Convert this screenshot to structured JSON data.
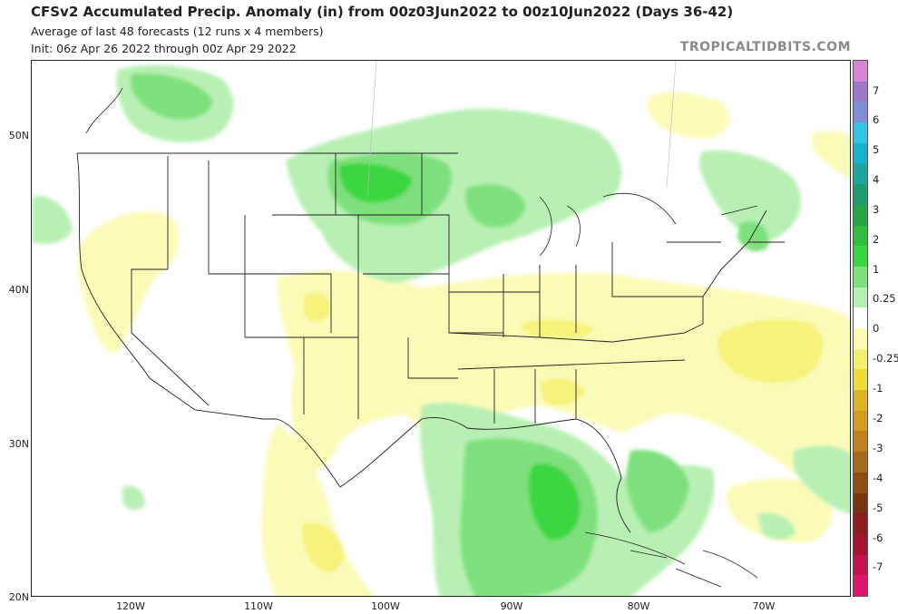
{
  "header": {
    "title": "CFSv2 Accumulated Precip. Anomaly (in) from 00z03Jun2022 to 00z10Jun2022 (Days 36-42)",
    "subtitle": "Average of last 48 forecasts (12 runs x 4 members)",
    "init": "Init: 06z Apr 26 2022 through 00z Apr 29 2022",
    "credit": "TROPICALTIDBITS.COM"
  },
  "axes": {
    "lat_labels": [
      "50N",
      "40N",
      "30N",
      "20N"
    ],
    "lon_labels": [
      "120W",
      "110W",
      "100W",
      "90W",
      "80W",
      "70W"
    ]
  },
  "colorbar": {
    "labels": [
      "7",
      "6",
      "5",
      "4",
      "3",
      "2",
      "1",
      "0.25",
      "0",
      "-0.25",
      "-1",
      "-2",
      "-3",
      "-4",
      "-5",
      "-6",
      "-7"
    ],
    "colors": [
      "#d884d8",
      "#9b79c9",
      "#7e8ed6",
      "#33c3ea",
      "#16b3cc",
      "#1fa49e",
      "#1d9c6e",
      "#25a545",
      "#2fbd3c",
      "#3ad63f",
      "#7ee07c",
      "#b5efb1",
      "#ffffff",
      "#fbfbb4",
      "#f3ef6f",
      "#eedc37",
      "#ddb323",
      "#d39b21",
      "#c3811d",
      "#a66a1d",
      "#8f4d14",
      "#7a3412",
      "#8e1d1d",
      "#a4142e",
      "#c8114e",
      "#e1146b"
    ]
  },
  "anomaly_colors": {
    "wet_light": "#b8f0b4",
    "wet_medium": "#7ee07c",
    "wet_strong": "#3ad63f",
    "dry_light": "#fbfbb8",
    "dry_medium": "#f6f27a"
  }
}
